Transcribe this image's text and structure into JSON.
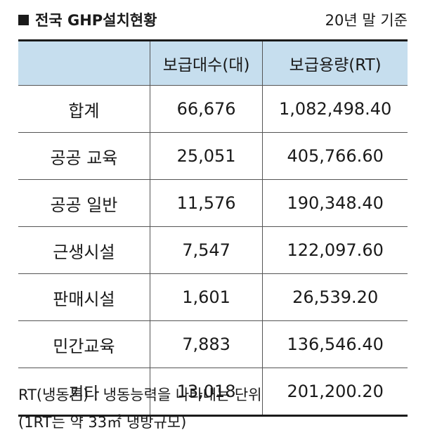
{
  "header": {
    "title": "전국 GHP설치현황",
    "date_note": "20년 말 기준"
  },
  "table": {
    "columns": [
      "",
      "보급대수(대)",
      "보급용량(RT)"
    ],
    "rows": [
      [
        "합계",
        "66,676",
        "1,082,498.40"
      ],
      [
        "공공 교육",
        "25,051",
        "405,766.60"
      ],
      [
        "공공 일반",
        "11,576",
        "190,348.40"
      ],
      [
        "근생시설",
        "7,547",
        "122,097.60"
      ],
      [
        "판매시설",
        "1,601",
        "26,539.20"
      ],
      [
        "민간교육",
        "7,883",
        "136,546.40"
      ],
      [
        "기타",
        "13,018",
        "201,200.20"
      ]
    ]
  },
  "footnote": {
    "line1": "RT(냉동톤) : 냉동능력을 나타내는 단위",
    "line2": "(1RT는 약 33㎡ 냉방규모)"
  }
}
